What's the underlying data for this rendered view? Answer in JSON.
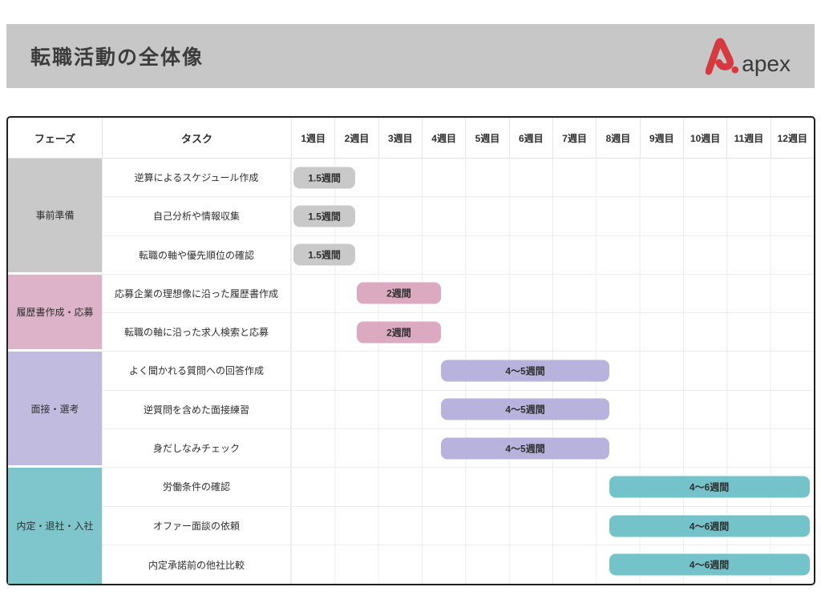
{
  "header": {
    "title": "転職活動の全体像",
    "logo_text": "apex",
    "logo_color": "#d63a41",
    "band_color": "#c7c7c7"
  },
  "table": {
    "phase_header": "フェーズ",
    "task_header": "タスク"
  },
  "chart_data": {
    "type": "table",
    "subtype": "gantt",
    "title": "転職活動の全体像",
    "x_unit": "week",
    "x_range_weeks": [
      0,
      12
    ],
    "x_ticks": [
      "1週目",
      "2週目",
      "3週目",
      "4週目",
      "5週目",
      "6週目",
      "7週目",
      "8週目",
      "9週目",
      "10週目",
      "11週目",
      "12週目"
    ],
    "grid": true,
    "phases": [
      {
        "name": "事前準備",
        "cell_color": "#c9c9c9",
        "bar_color": "#c9c9c9",
        "tasks": [
          {
            "label": "逆算によるスケジュール作成",
            "duration_label": "1.5週間",
            "start_week": 0.05,
            "end_week": 1.48
          },
          {
            "label": "自己分析や情報収集",
            "duration_label": "1.5週間",
            "start_week": 0.05,
            "end_week": 1.48
          },
          {
            "label": "転職の軸や優先順位の確認",
            "duration_label": "1.5週間",
            "start_week": 0.05,
            "end_week": 1.48
          }
        ]
      },
      {
        "name": "履歴書作成・応募",
        "cell_color": "#dcb3c8",
        "bar_color": "#dba9c0",
        "tasks": [
          {
            "label": "応募企業の理想像に沿った履歴書作成",
            "duration_label": "2週間",
            "start_week": 1.5,
            "end_week": 3.45
          },
          {
            "label": "転職の軸に沿った求人検索と応募",
            "duration_label": "2週間",
            "start_week": 1.5,
            "end_week": 3.45
          }
        ]
      },
      {
        "name": "面接・選考",
        "cell_color": "#c1bcdf",
        "bar_color": "#b8b3dc",
        "tasks": [
          {
            "label": "よく聞かれる質問への回答作成",
            "duration_label": "4〜5週間",
            "start_week": 3.45,
            "end_week": 7.3
          },
          {
            "label": "逆質問を含めた面接練習",
            "duration_label": "4〜5週間",
            "start_week": 3.45,
            "end_week": 7.3
          },
          {
            "label": "身だしなみチェック",
            "duration_label": "4〜5週間",
            "start_week": 3.45,
            "end_week": 7.3
          }
        ]
      },
      {
        "name": "内定・退社・入社",
        "cell_color": "#7fc6cc",
        "bar_color": "#74c3ca",
        "tasks": [
          {
            "label": "労働条件の確認",
            "duration_label": "4〜6週間",
            "start_week": 7.3,
            "end_week": 11.9
          },
          {
            "label": "オファー面談の依頼",
            "duration_label": "4〜6週間",
            "start_week": 7.3,
            "end_week": 11.9
          },
          {
            "label": "内定承諾前の他社比較",
            "duration_label": "4〜6週間",
            "start_week": 7.3,
            "end_week": 11.9
          }
        ]
      }
    ]
  }
}
